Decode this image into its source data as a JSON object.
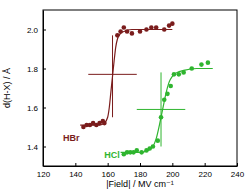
{
  "chart_data": {
    "type": "scatter",
    "xlabel": "|Field| / MV cm⁻¹",
    "ylabel": "d(H-X) / Å",
    "xlim": [
      120,
      240
    ],
    "xticks": [
      120,
      140,
      160,
      180,
      200,
      220,
      240
    ],
    "ylim": [
      1.3,
      2.1
    ],
    "yticks": [
      1.4,
      1.6,
      1.8,
      {
        "value": 2.0,
        "label": "2.0"
      }
    ],
    "series": [
      {
        "name": "HBr",
        "color": "#7a1c1c",
        "marker": "circle",
        "x": [
          145,
          147,
          149,
          151,
          153,
          155,
          157,
          158,
          166,
          168,
          170,
          172,
          175,
          180,
          184,
          187,
          190,
          195,
          198,
          200
        ],
        "values": [
          1.5,
          1.51,
          1.51,
          1.52,
          1.51,
          1.52,
          1.53,
          1.52,
          1.97,
          1.99,
          2.01,
          1.99,
          1.98,
          1.99,
          2.0,
          2.01,
          2.01,
          2.0,
          2.02,
          2.03
        ],
        "fit": {
          "x": [
            143,
            150,
            155,
            158,
            160,
            161,
            162,
            163,
            164,
            165,
            166,
            168,
            170,
            175,
            185,
            200
          ],
          "values": [
            1.51,
            1.51,
            1.51,
            1.52,
            1.55,
            1.6,
            1.68,
            1.76,
            1.84,
            1.91,
            1.95,
            1.98,
            1.99,
            2.0,
            2.0,
            2.0
          ]
        },
        "crosshair": {
          "x": 163,
          "y": 1.77,
          "x_range": [
            148,
            178
          ],
          "y_range": [
            1.55,
            1.97
          ]
        }
      },
      {
        "name": "HCl",
        "color": "#2fb52f",
        "marker": "circle",
        "x": [
          170,
          172,
          174,
          176,
          178,
          181,
          184,
          186,
          188,
          191,
          193,
          195,
          197,
          199,
          201,
          204,
          207,
          212,
          218,
          222
        ],
        "values": [
          1.36,
          1.37,
          1.37,
          1.37,
          1.38,
          1.37,
          1.38,
          1.39,
          1.4,
          1.43,
          1.55,
          1.64,
          1.67,
          1.71,
          1.77,
          1.77,
          1.78,
          1.8,
          1.82,
          1.83
        ],
        "fit": {
          "x": [
            168,
            180,
            185,
            188,
            190,
            192,
            194,
            196,
            198,
            200,
            203,
            207,
            215,
            225
          ],
          "values": [
            1.37,
            1.37,
            1.38,
            1.4,
            1.44,
            1.51,
            1.59,
            1.67,
            1.73,
            1.76,
            1.78,
            1.79,
            1.8,
            1.8
          ]
        },
        "crosshair": {
          "x": 193,
          "y": 1.59,
          "x_range": [
            178,
            208
          ],
          "y_range": [
            1.4,
            1.78
          ]
        }
      }
    ]
  }
}
